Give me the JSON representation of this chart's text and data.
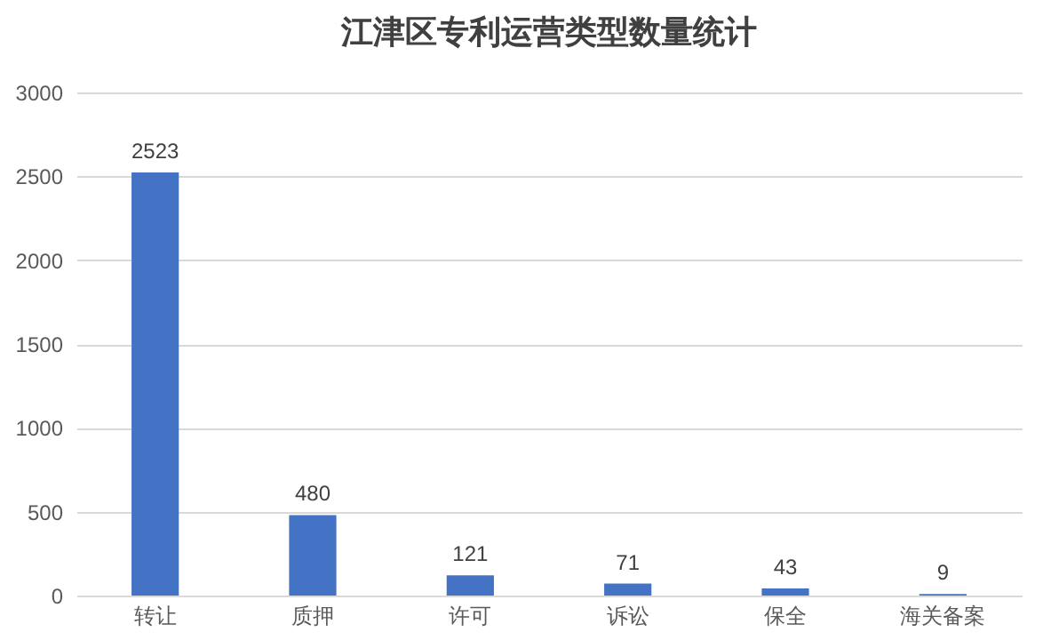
{
  "chart_data": {
    "type": "bar",
    "title": "江津区专利运营类型数量统计",
    "categories": [
      "转让",
      "质押",
      "许可",
      "诉讼",
      "保全",
      "海关备案"
    ],
    "values": [
      2523,
      480,
      121,
      71,
      43,
      9
    ],
    "color": "#4472c4",
    "ylim": [
      0,
      3000
    ],
    "yticks": [
      0,
      500,
      1000,
      1500,
      2000,
      2500,
      3000
    ],
    "grid": "y",
    "data_labels": true
  }
}
